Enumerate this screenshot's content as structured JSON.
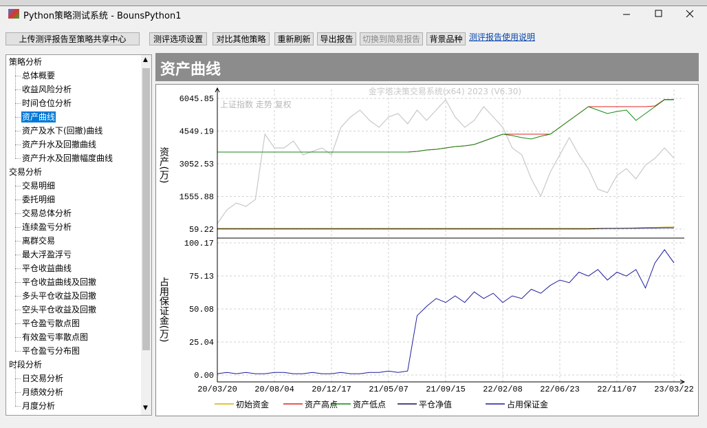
{
  "window": {
    "title": "Python策略测试系统 - BounsPython1"
  },
  "toolbar": {
    "buttons": [
      "上传测评报告至策略共享中心",
      "测评选项设置",
      "对比其他策略",
      "重新刷新",
      "导出报告",
      "切换到简易报告",
      "背景品种"
    ],
    "link": "测评报告使用说明"
  },
  "sidebar": {
    "groups": [
      {
        "title": "策略分析",
        "items": [
          "总体概要",
          "收益风险分析",
          "时间仓位分析",
          "资产曲线",
          "资产及水下(回撤)曲线",
          "资产升水及回撤曲线",
          "资产升水及回撤幅度曲线"
        ]
      },
      {
        "title": "交易分析",
        "items": [
          "交易明细",
          "委托明细",
          "交易总体分析",
          "连续盈亏分析",
          "离群交易",
          "最大浮盈浮亏",
          "平仓收益曲线",
          "平仓收益曲线及回撤",
          "多头平仓收益及回撤",
          "空头平仓收益及回撤",
          "平仓盈亏散点图",
          "有效盈亏率散点图",
          "平仓盈亏分布图"
        ]
      },
      {
        "title": "时段分析",
        "items": [
          "日交易分析",
          "月绩效分析",
          "月度分析"
        ]
      }
    ],
    "selected": "资产曲线"
  },
  "panel": {
    "title": "资产曲线"
  },
  "chart_data": [
    {
      "type": "line",
      "watermark": "金字塔决策交易系统(x64) 2023 (V6.30)",
      "ylabel": "资产(万)",
      "ylim": [
        59.22,
        6045.85
      ],
      "yticks": [
        59.22,
        1555.88,
        3052.53,
        4549.19,
        6045.85
      ],
      "grid": true,
      "overlay": {
        "label": "上证指数 走势 复权",
        "color": "#c8c8c8",
        "values": [
          311,
          941,
          1257,
          1099,
          1414,
          4408,
          3777,
          3777,
          4092,
          3462,
          3620,
          3777,
          3462,
          4723,
          5195,
          5510,
          5038,
          4723,
          5195,
          5353,
          4880,
          5510,
          5038,
          5510,
          5983,
          5195,
          4723,
          5038,
          5668,
          5195,
          4723,
          3777,
          3462,
          2359,
          1572,
          2674,
          3462,
          4250,
          3462,
          2832,
          1887,
          1729,
          2517,
          2832,
          2359,
          2989,
          3305,
          3777,
          3305
        ]
      },
      "series": [
        {
          "name": "初始资金",
          "color": "#d4b000",
          "values": [
            100,
            100,
            100,
            100,
            100,
            100,
            100,
            100,
            100,
            100,
            100,
            100,
            100,
            100,
            100,
            100,
            100,
            100,
            100,
            100,
            100,
            100,
            100,
            100,
            100,
            100,
            100,
            100,
            100,
            100,
            100,
            100,
            100,
            100,
            100,
            100,
            100,
            100,
            100,
            100,
            100,
            100,
            100,
            100,
            120,
            130,
            140,
            150,
            160
          ]
        },
        {
          "name": "资产高点",
          "color": "#e02020",
          "values": [
            3588,
            3588,
            3588,
            3588,
            3588,
            3588,
            3588,
            3588,
            3588,
            3588,
            3588,
            3588,
            3588,
            3588,
            3588,
            3588,
            3588,
            3588,
            3588,
            3588,
            3588,
            3620,
            3683,
            3714,
            3777,
            3840,
            3872,
            3935,
            4092,
            4250,
            4408,
            4408,
            4408,
            4408,
            4408,
            4408,
            4723,
            5038,
            5353,
            5668,
            5668,
            5668,
            5668,
            5668,
            5668,
            5668,
            5700,
            6000,
            6000
          ]
        },
        {
          "name": "资产低点",
          "color": "#128a12",
          "values": [
            3588,
            3588,
            3588,
            3588,
            3588,
            3588,
            3588,
            3588,
            3588,
            3588,
            3588,
            3588,
            3588,
            3588,
            3588,
            3588,
            3588,
            3588,
            3588,
            3588,
            3588,
            3620,
            3683,
            3714,
            3777,
            3840,
            3872,
            3935,
            4092,
            4250,
            4408,
            4344,
            4250,
            4187,
            4313,
            4408,
            4723,
            5038,
            5353,
            5668,
            5510,
            5353,
            5447,
            5510,
            5038,
            5353,
            5668,
            5983,
            5983
          ]
        },
        {
          "name": "平仓净值",
          "color": "#101050",
          "values": [
            70,
            70,
            70,
            70,
            70,
            70,
            70,
            70,
            70,
            70,
            70,
            70,
            70,
            70,
            70,
            70,
            70,
            70,
            70,
            70,
            70,
            70,
            70,
            70,
            70,
            70,
            70,
            70,
            70,
            70,
            70,
            70,
            70,
            70,
            70,
            70,
            70,
            70,
            70,
            70,
            80,
            90,
            90,
            100,
            100,
            110,
            110,
            120,
            120
          ]
        }
      ]
    },
    {
      "type": "line",
      "ylabel": "占用保证金(万)",
      "ylim": [
        0,
        100.17
      ],
      "yticks": [
        {
          "value": 0,
          "label": "0.00"
        },
        25.04,
        50.08,
        75.13,
        100.17
      ],
      "grid": true,
      "xlim": [
        0,
        48
      ],
      "xticks": [
        {
          "value": 0,
          "label": "20/03/20"
        },
        {
          "value": 6,
          "label": "20/08/04"
        },
        {
          "value": 12,
          "label": "20/12/17"
        },
        {
          "value": 18,
          "label": "21/05/07"
        },
        {
          "value": 24,
          "label": "21/09/15"
        },
        {
          "value": 30,
          "label": "22/02/08"
        },
        {
          "value": 36,
          "label": "22/06/23"
        },
        {
          "value": 42,
          "label": "22/11/07"
        },
        {
          "value": 48,
          "label": "23/03/22"
        }
      ],
      "series": [
        {
          "name": "占用保证金",
          "color": "#1c1c9c",
          "values": [
            1,
            2,
            1,
            2,
            1,
            1,
            2,
            2,
            1,
            1,
            2,
            1,
            1,
            2,
            1,
            1,
            2,
            2,
            3,
            2,
            3,
            45,
            52,
            58,
            55,
            60,
            55,
            63,
            58,
            62,
            55,
            60,
            58,
            65,
            62,
            68,
            72,
            70,
            78,
            75,
            80,
            72,
            78,
            75,
            80,
            66,
            85,
            95,
            85
          ]
        }
      ]
    }
  ]
}
